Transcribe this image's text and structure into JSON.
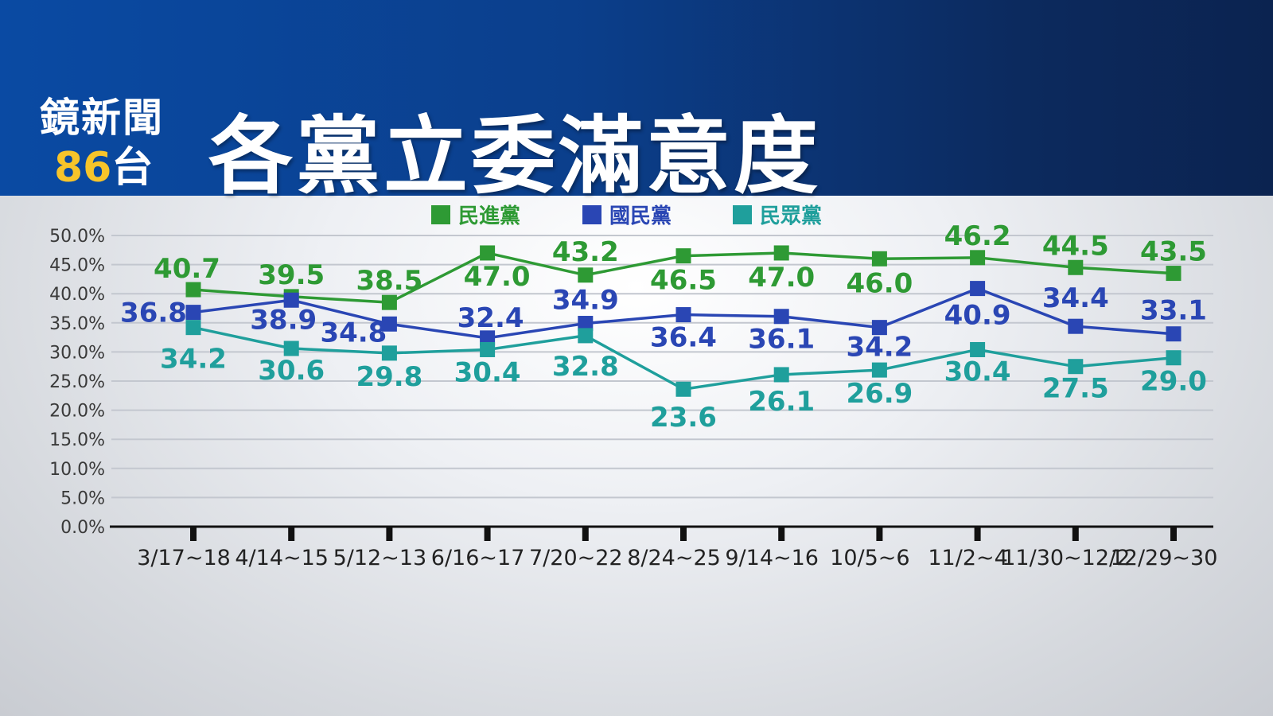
{
  "header": {
    "logo_line1": "鏡新聞",
    "logo_number": "86",
    "logo_suffix": "台",
    "title": "各黨立委滿意度"
  },
  "colors": {
    "header_left": "#0a4aa3",
    "header_right": "#0b2350",
    "logo_accent": "#f7c42a",
    "dpp": "#2e9a34",
    "kmt": "#2a46b4",
    "tpp": "#1f9f9c"
  },
  "chart_data": {
    "type": "line",
    "categories": [
      "3/17~18",
      "4/14~15",
      "5/12~13",
      "6/16~17",
      "7/20~22",
      "8/24~25",
      "9/14~16",
      "10/5~6",
      "11/2~4",
      "11/30~12/2",
      "12/29~30"
    ],
    "ylim": [
      0,
      50
    ],
    "yticks": [
      "0.0%",
      "5.0%",
      "10.0%",
      "15.0%",
      "20.0%",
      "25.0%",
      "30.0%",
      "35.0%",
      "40.0%",
      "45.0%",
      "50.0%"
    ],
    "grid": true,
    "legend_position": "top-center",
    "series": [
      {
        "name": "民進黨",
        "color": "#2e9a34",
        "values": [
          40.7,
          39.5,
          38.5,
          47.0,
          43.2,
          46.5,
          47.0,
          46.0,
          46.2,
          44.5,
          43.5
        ],
        "labels": [
          "40.7",
          "39.5",
          "38.5",
          "47.0",
          "43.2",
          "46.5",
          "47.0",
          "46.0",
          "46.2",
          "44.5",
          "43.5"
        ]
      },
      {
        "name": "國民黨",
        "color": "#2a46b4",
        "values": [
          36.8,
          38.9,
          34.8,
          32.4,
          34.9,
          36.4,
          36.1,
          34.2,
          40.9,
          34.4,
          33.1
        ],
        "labels": [
          "36.8",
          "38.9",
          "34.8",
          "32.4",
          "34.9",
          "36.4",
          "36.1",
          "34.2",
          "40.9",
          "34.4",
          "33.1"
        ]
      },
      {
        "name": "民眾黨",
        "color": "#1f9f9c",
        "values": [
          34.2,
          30.6,
          29.8,
          30.4,
          32.8,
          23.6,
          26.1,
          26.9,
          30.4,
          27.5,
          29.0
        ],
        "labels": [
          "34.2",
          "30.6",
          "29.8",
          "30.4",
          "32.8",
          "23.6",
          "26.1",
          "26.9",
          "30.4",
          "27.5",
          "29.0"
        ]
      }
    ]
  }
}
